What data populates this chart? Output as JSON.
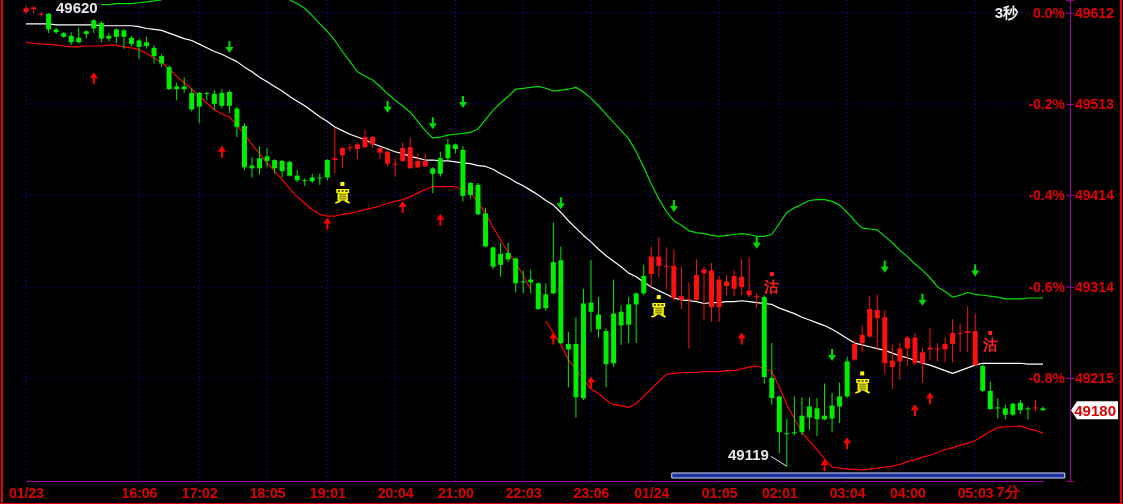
{
  "chart_data": {
    "type": "candlestick",
    "categories": [
      "01/23",
      null,
      null,
      null,
      null,
      null,
      null,
      null,
      null,
      null,
      null,
      null,
      null,
      null,
      null,
      "16:06",
      null,
      null,
      null,
      null,
      null,
      null,
      null,
      "17:02",
      null,
      null,
      null,
      null,
      null,
      null,
      null,
      null,
      "18:05",
      null,
      null,
      null,
      null,
      null,
      null,
      null,
      "19:01",
      null,
      null,
      null,
      null,
      null,
      null,
      null,
      null,
      "20:04",
      null,
      null,
      null,
      null,
      null,
      null,
      null,
      "21:00",
      null,
      null,
      null,
      null,
      null,
      null,
      null,
      null,
      "22:03",
      null,
      null,
      null,
      null,
      null,
      null,
      null,
      null,
      "23:06",
      null,
      null,
      null,
      null,
      null,
      null,
      null,
      "01/24",
      null,
      null,
      null,
      null,
      null,
      null,
      null,
      null,
      "01:05",
      null,
      null,
      null,
      null,
      null,
      null,
      null,
      "02:01",
      null,
      null,
      null,
      null,
      null,
      null,
      null,
      null,
      "03:04",
      null,
      null,
      null,
      null,
      null,
      null,
      null,
      "04:00",
      null,
      null,
      null,
      null,
      null,
      null,
      null,
      null,
      "05:03",
      null,
      null,
      null,
      null,
      null,
      null,
      null,
      null,
      null
    ],
    "ohlc": [
      [
        49613,
        49620,
        49611,
        49617
      ],
      [
        49616,
        49619,
        49612,
        49618
      ],
      [
        49610,
        49613,
        49608,
        49611
      ],
      [
        49611,
        49612,
        49590,
        49594
      ],
      [
        49594,
        49596,
        49589,
        49591
      ],
      [
        49590,
        49591,
        49585,
        49586
      ],
      [
        49587,
        49591,
        49577,
        49580
      ],
      [
        49585,
        49596,
        49579,
        49580
      ],
      [
        49592,
        49593,
        49584,
        49589
      ],
      [
        49604,
        49605,
        49590,
        49595
      ],
      [
        49601,
        49603,
        49580,
        49584
      ],
      [
        49587,
        49590,
        49581,
        49584
      ],
      [
        49594,
        49595,
        49579,
        49586
      ],
      [
        49593,
        49594,
        49573,
        49586
      ],
      [
        49585,
        49587,
        49576,
        49578
      ],
      [
        49582,
        49584,
        49562,
        49575
      ],
      [
        49580,
        49586,
        49573,
        49576
      ],
      [
        49574,
        49577,
        49557,
        49565
      ],
      [
        49565,
        49567,
        49553,
        49557
      ],
      [
        49553,
        49555,
        49528,
        49529
      ],
      [
        49532,
        49536,
        49517,
        49529
      ],
      [
        49532,
        49542,
        49525,
        49529
      ],
      [
        49525,
        49530,
        49505,
        49507
      ],
      [
        49525,
        49526,
        49492,
        49510
      ],
      [
        49525,
        49526,
        49517,
        49524
      ],
      [
        49524,
        49528,
        49506,
        49513
      ],
      [
        49525,
        49529,
        49508,
        49511
      ],
      [
        49526,
        49528,
        49503,
        49511
      ],
      [
        49508,
        49510,
        49477,
        49488
      ],
      [
        49489,
        49492,
        49441,
        49444
      ],
      [
        49446,
        49455,
        49433,
        49443
      ],
      [
        49454,
        49467,
        49436,
        49443
      ],
      [
        49456,
        49465,
        49444,
        49451
      ],
      [
        49452,
        49453,
        49437,
        49443
      ],
      [
        49451,
        49452,
        49433,
        49440
      ],
      [
        49450,
        49451,
        49434,
        49435
      ],
      [
        49435,
        49441,
        49428,
        49430
      ],
      [
        49430,
        49432,
        49424,
        49429
      ],
      [
        49433,
        49437,
        49427,
        49429
      ],
      [
        49433,
        49437,
        49425,
        49432
      ],
      [
        49452,
        49453,
        49430,
        49433
      ],
      [
        49452,
        49487,
        49438,
        49454
      ],
      [
        49457,
        49466,
        49443,
        49465
      ],
      [
        49465,
        49470,
        49461,
        49466
      ],
      [
        49464,
        49471,
        49453,
        49469
      ],
      [
        49466,
        49485,
        49465,
        49477
      ],
      [
        49469,
        49478,
        49465,
        49477
      ],
      [
        49460,
        49466,
        49453,
        49465
      ],
      [
        49448,
        49462,
        49445,
        49461
      ],
      [
        49447,
        49454,
        49434,
        49448
      ],
      [
        49451,
        49471,
        49450,
        49465
      ],
      [
        49443,
        49476,
        49443,
        49466
      ],
      [
        49444,
        49459,
        49443,
        49451
      ],
      [
        49445,
        49459,
        49445,
        49451
      ],
      [
        49443,
        49444,
        49416,
        49437
      ],
      [
        49454,
        49461,
        49434,
        49437
      ],
      [
        49469,
        49475,
        49452,
        49454
      ],
      [
        49469,
        49470,
        49459,
        49464
      ],
      [
        49463,
        49467,
        49407,
        49413
      ],
      [
        49427,
        49428,
        49410,
        49414
      ],
      [
        49425,
        49427,
        49392,
        49393
      ],
      [
        49394,
        49400,
        49357,
        49358
      ],
      [
        49357,
        49358,
        49333,
        49336
      ],
      [
        49350,
        49362,
        49325,
        49338
      ],
      [
        49351,
        49362,
        49341,
        49344
      ],
      [
        49345,
        49346,
        49308,
        49318
      ],
      [
        49320,
        49332,
        49307,
        49319
      ],
      [
        49322,
        49333,
        49307,
        49319
      ],
      [
        49318,
        49319,
        49289,
        49290
      ],
      [
        49306,
        49318,
        49288,
        49291
      ],
      [
        49341,
        49384,
        49306,
        49307
      ],
      [
        49343,
        49358,
        49252,
        49253
      ],
      [
        49252,
        49265,
        49205,
        49246
      ],
      [
        49252,
        49281,
        49172,
        49194
      ],
      [
        49296,
        49312,
        49191,
        49193
      ],
      [
        49297,
        49343,
        49265,
        49287
      ],
      [
        49284,
        49303,
        49259,
        49268
      ],
      [
        49266,
        49269,
        49205,
        49230
      ],
      [
        49285,
        49322,
        49227,
        49231
      ],
      [
        49287,
        49294,
        49251,
        49272
      ],
      [
        49295,
        49303,
        49253,
        49273
      ],
      [
        49307,
        49308,
        49253,
        49295
      ],
      [
        49326,
        49338,
        49305,
        49307
      ],
      [
        49328,
        49358,
        49314,
        49347
      ],
      [
        49337,
        49368,
        49325,
        49347
      ],
      [
        49336,
        49357,
        49311,
        49337
      ],
      [
        49302,
        49355,
        49299,
        49337
      ],
      [
        49300,
        49336,
        49290,
        49304
      ],
      [
        49300,
        49319,
        49247,
        49301
      ],
      [
        49300,
        49344,
        49299,
        49327
      ],
      [
        49329,
        49336,
        49278,
        49333
      ],
      [
        49292,
        49340,
        49276,
        49332
      ],
      [
        49292,
        49326,
        49276,
        49322
      ],
      [
        49315,
        49327,
        49305,
        49320
      ],
      [
        49312,
        49332,
        49304,
        49326
      ],
      [
        49314,
        49344,
        49305,
        49325
      ],
      [
        49305,
        49346,
        49303,
        49310
      ],
      [
        49303,
        49307,
        49291,
        49304
      ],
      [
        49303,
        49305,
        49209,
        49216
      ],
      [
        49215,
        49253,
        49186,
        49193
      ],
      [
        49195,
        49196,
        49133,
        49156
      ],
      [
        49155,
        49171,
        49119,
        49154
      ],
      [
        49156,
        49195,
        49153,
        49155
      ],
      [
        49174,
        49194,
        49153,
        49156
      ],
      [
        49184,
        49194,
        49158,
        49172
      ],
      [
        49182,
        49193,
        49152,
        49170
      ],
      [
        49174,
        49209,
        49169,
        49170
      ],
      [
        49185,
        49199,
        49156,
        49171
      ],
      [
        49195,
        49210,
        49166,
        49184
      ],
      [
        49233,
        49238,
        49193,
        49195
      ],
      [
        49235,
        49256,
        49234,
        49252
      ],
      [
        49253,
        49272,
        49243,
        49262
      ],
      [
        49260,
        49304,
        49259,
        49290
      ],
      [
        49280,
        49306,
        49245,
        49289
      ],
      [
        49231,
        49289,
        49220,
        49281
      ],
      [
        49227,
        49251,
        49203,
        49234
      ],
      [
        49233,
        49253,
        49213,
        49247
      ],
      [
        49247,
        49261,
        49228,
        49259
      ],
      [
        49231,
        49264,
        49229,
        49259
      ],
      [
        49231,
        49248,
        49210,
        49243
      ],
      [
        49246,
        49269,
        49234,
        49248
      ],
      [
        49246,
        49253,
        49233,
        49247
      ],
      [
        49246,
        49259,
        49232,
        49252
      ],
      [
        49252,
        49279,
        49232,
        49264
      ],
      [
        49263,
        49274,
        49243,
        49264
      ],
      [
        49264,
        49293,
        49243,
        49266
      ],
      [
        49229,
        49285,
        49228,
        49266
      ],
      [
        49228,
        49230,
        49200,
        49201
      ],
      [
        49201,
        49211,
        49181,
        49181
      ],
      [
        49183,
        49193,
        49171,
        49182
      ],
      [
        49182,
        49186,
        49170,
        49175
      ],
      [
        49187,
        49188,
        49174,
        49175
      ],
      [
        49188,
        49191,
        49176,
        49180
      ],
      [
        49182,
        49184,
        49170,
        49181
      ],
      [
        49182,
        49191,
        49179,
        49183
      ],
      [
        49182,
        49184,
        49179,
        49180
      ]
    ],
    "series": [
      {
        "type": "line",
        "color": "#00e000",
        "values": [
          null,
          null,
          null,
          null,
          null,
          null,
          null,
          null,
          null,
          null,
          49621,
          49621,
          49622,
          49622,
          49622,
          49623,
          49624,
          49625,
          49626,
          null,
          null,
          null,
          null,
          null,
          null,
          null,
          null,
          null,
          null,
          null,
          null,
          null,
          null,
          null,
          null,
          49626,
          49622,
          49617,
          49609,
          49600,
          49592,
          49582,
          49570,
          49559,
          49548,
          49543,
          49539,
          49532,
          49524,
          49517,
          49511,
          49504,
          49494,
          49484,
          49476,
          49477,
          49479,
          49480,
          49481,
          49482,
          49486,
          49496,
          49506,
          49514,
          49521,
          49529,
          49530,
          49531,
          49532,
          49530,
          49527,
          49528,
          49529,
          49531,
          49526,
          49519,
          49511,
          49502,
          49493,
          49484,
          49475,
          49461,
          49444,
          49426,
          49410,
          49396,
          49386,
          49381,
          49375,
          49373,
          49372,
          49370,
          49369,
          49370,
          49371,
          49372,
          49371,
          49369,
          49369,
          49371,
          49383,
          49395,
          49400,
          49404,
          49408,
          49409,
          49409,
          49407,
          49403,
          49395,
          49386,
          49378,
          49377,
          49376,
          49369,
          49362,
          49354,
          49347,
          49339,
          49332,
          49324,
          49314,
          49309,
          49303,
          49305,
          49308,
          49306,
          49305,
          49304,
          49303,
          49301,
          49301,
          49301,
          49302,
          49302,
          49302
        ]
      },
      {
        "type": "line",
        "color": "#ffffff",
        "values": [
          49600,
          49600,
          49600,
          49600,
          49599,
          49599,
          49599,
          49599,
          49599,
          49599,
          49598,
          49598,
          49598,
          49598,
          49598,
          49597,
          49595,
          49594,
          49593,
          49590,
          49587,
          49584,
          49582,
          49578,
          49574,
          49570,
          49567,
          49563,
          49559,
          49553,
          49548,
          49542,
          49537,
          49532,
          49527,
          49521,
          49516,
          49511,
          49505,
          49499,
          49494,
          49488,
          49484,
          49480,
          49477,
          49474,
          49470,
          49467,
          49464,
          49461,
          49459,
          49456,
          49454,
          49452,
          49452,
          49451,
          49451,
          49450,
          49449,
          49448,
          49446,
          49445,
          49442,
          49437,
          49433,
          49428,
          49424,
          49419,
          49414,
          49408,
          49403,
          49395,
          49386,
          49378,
          49370,
          49363,
          49355,
          49348,
          49342,
          49336,
          49329,
          49325,
          49319,
          49314,
          49310,
          49306,
          49302,
          49300,
          49299,
          49298,
          49296,
          49297,
          49297,
          49298,
          49298,
          49299,
          49298,
          49297,
          49296,
          49295,
          49291,
          49288,
          49285,
          49281,
          49278,
          49275,
          49272,
          49268,
          49263,
          49258,
          49253,
          49251,
          49249,
          49247,
          49245,
          49242,
          49239,
          49237,
          49234,
          49231,
          49229,
          49226,
          49223,
          49220,
          49223,
          49226,
          49229,
          49231,
          49231,
          49231,
          49231,
          49231,
          49231,
          49230,
          49230,
          49230
        ]
      },
      {
        "type": "line",
        "color": "#ff0000",
        "values": [
          49580,
          49579,
          49578,
          49578,
          49577,
          49576,
          49575,
          49575,
          49576,
          49576,
          49576,
          49577,
          49577,
          49575,
          49574,
          49572,
          49568,
          49563,
          49558,
          49551,
          49543,
          49536,
          49529,
          49522,
          49514,
          49507,
          49502,
          49499,
          49490,
          49480,
          49469,
          49459,
          49449,
          49440,
          49431,
          49421,
          49412,
          49405,
          49398,
          49393,
          49391,
          49391,
          49393,
          49394,
          49396,
          49398,
          49400,
          49402,
          49405,
          49407,
          49409,
          49412,
          49416,
          49420,
          49423,
          49423,
          49423,
          49423,
          49420,
          49417,
          49406,
          49394,
          49379,
          49365,
          49352,
          49340,
          49327,
          49311,
          null,
          49277,
          49264,
          49251,
          49235,
          49224,
          49213,
          49203,
          49198,
          49191,
          49186,
          49185,
          49183,
          49187,
          49195,
          49203,
          49211,
          49219,
          49220,
          49221,
          49221,
          49221,
          49222,
          49222,
          49222,
          49223,
          49223,
          49225,
          49227,
          49228,
          49225,
          49222,
          49205,
          49186,
          49171,
          49156,
          49146,
          49137,
          49127,
          49118,
          49117,
          49116,
          49116,
          49115,
          49116,
          49117,
          49118,
          49119,
          49121,
          49124,
          49126,
          49129,
          49131,
          49134,
          49137,
          49139,
          49142,
          49144,
          49147,
          49152,
          49157,
          49161,
          49162,
          49162,
          49163,
          49160,
          49158,
          49155
        ]
      },
      {
        "type": "scatter",
        "color": "#00e000",
        "marker": "triangle",
        "values": [
          null,
          null,
          null,
          null,
          null,
          null,
          null,
          null,
          null,
          null,
          null,
          null,
          null,
          null,
          null,
          null,
          null,
          null,
          null,
          null,
          null,
          null,
          null,
          null,
          null,
          null,
          null,
          49575,
          null,
          null,
          null,
          null,
          null,
          null,
          null,
          null,
          null,
          null,
          null,
          null,
          null,
          null,
          null,
          null,
          null,
          null,
          null,
          null,
          49510,
          null,
          null,
          null,
          null,
          null,
          49492,
          null,
          null,
          null,
          49515,
          null,
          null,
          null,
          null,
          null,
          null,
          null,
          null,
          null,
          null,
          null,
          null,
          49405,
          null,
          null,
          null,
          null,
          null,
          null,
          null,
          null,
          null,
          null,
          null,
          null,
          null,
          null,
          49402,
          null,
          null,
          null,
          null,
          null,
          null,
          null,
          null,
          null,
          null,
          49362,
          null,
          null,
          null,
          null,
          null,
          null,
          null,
          null,
          null,
          49240,
          null,
          null,
          null,
          null,
          null,
          null,
          49336,
          null,
          null,
          null,
          null,
          49300,
          null,
          null,
          null,
          null,
          null,
          null,
          49332,
          null,
          null,
          null,
          null,
          null,
          null,
          null,
          null,
          null
        ]
      },
      {
        "type": "scatter",
        "color": "#ff0000",
        "marker": "triangle",
        "values": [
          null,
          null,
          null,
          null,
          null,
          null,
          null,
          null,
          null,
          49541,
          null,
          null,
          null,
          null,
          null,
          null,
          null,
          null,
          null,
          null,
          null,
          null,
          null,
          null,
          null,
          null,
          49461,
          null,
          null,
          null,
          null,
          null,
          null,
          null,
          null,
          null,
          null,
          null,
          null,
          null,
          49383,
          null,
          null,
          null,
          null,
          null,
          null,
          null,
          null,
          null,
          49401,
          null,
          null,
          null,
          null,
          49387,
          null,
          null,
          null,
          null,
          null,
          null,
          null,
          null,
          null,
          null,
          null,
          null,
          null,
          null,
          49258,
          null,
          null,
          null,
          null,
          49210,
          null,
          null,
          null,
          null,
          null,
          null,
          null,
          null,
          null,
          null,
          null,
          null,
          null,
          null,
          null,
          null,
          null,
          null,
          null,
          49258,
          null,
          null,
          null,
          null,
          null,
          null,
          null,
          null,
          null,
          null,
          49120,
          null,
          null,
          49144,
          null,
          null,
          null,
          null,
          null,
          null,
          null,
          null,
          49180,
          null,
          49193,
          null,
          null,
          null,
          null,
          null,
          null,
          null,
          null,
          null,
          null,
          null,
          null,
          null,
          null,
          null
        ]
      },
      {
        "type": "scatter",
        "color": "#ffff00",
        "marker": "square",
        "values": [
          null,
          null,
          null,
          null,
          null,
          null,
          null,
          null,
          null,
          null,
          null,
          null,
          null,
          null,
          null,
          null,
          null,
          null,
          null,
          null,
          null,
          null,
          null,
          null,
          null,
          null,
          null,
          null,
          null,
          null,
          null,
          null,
          null,
          null,
          null,
          null,
          null,
          null,
          null,
          null,
          null,
          null,
          49426,
          null,
          null,
          null,
          null,
          null,
          null,
          null,
          null,
          null,
          null,
          null,
          null,
          null,
          null,
          null,
          null,
          null,
          null,
          null,
          null,
          null,
          null,
          null,
          null,
          null,
          null,
          null,
          null,
          null,
          null,
          null,
          null,
          null,
          null,
          null,
          null,
          null,
          null,
          null,
          null,
          null,
          49303,
          null,
          null,
          null,
          null,
          null,
          null,
          null,
          null,
          null,
          null,
          null,
          null,
          null,
          null,
          null,
          null,
          null,
          null,
          null,
          null,
          null,
          null,
          null,
          null,
          null,
          null,
          49220,
          null,
          null,
          null,
          null,
          null,
          null,
          null,
          null,
          null,
          null,
          null,
          null,
          null,
          null,
          null,
          null,
          null,
          null,
          null,
          null,
          null,
          null,
          null,
          null
        ],
        "value_labels": [
          null,
          null,
          null,
          null,
          null,
          null,
          null,
          null,
          null,
          null,
          null,
          null,
          null,
          null,
          null,
          null,
          null,
          null,
          null,
          null,
          null,
          null,
          null,
          null,
          null,
          null,
          null,
          null,
          null,
          null,
          null,
          null,
          null,
          null,
          null,
          null,
          null,
          null,
          null,
          null,
          null,
          null,
          "買",
          null,
          null,
          null,
          null,
          null,
          null,
          null,
          null,
          null,
          null,
          null,
          null,
          null,
          null,
          null,
          null,
          null,
          null,
          null,
          null,
          null,
          null,
          null,
          null,
          null,
          null,
          null,
          null,
          null,
          null,
          null,
          null,
          null,
          null,
          null,
          null,
          null,
          null,
          null,
          null,
          null,
          "買",
          null,
          null,
          null,
          null,
          null,
          null,
          null,
          null,
          null,
          null,
          null,
          null,
          null,
          null,
          null,
          null,
          null,
          null,
          null,
          null,
          null,
          null,
          null,
          null,
          null,
          null,
          "買",
          null,
          null,
          null,
          null,
          null,
          null,
          null,
          null,
          null,
          null,
          null,
          null,
          null,
          null,
          null,
          null,
          null,
          null,
          null,
          null,
          null,
          null,
          null,
          null
        ]
      },
      {
        "type": "scatter",
        "color": "#ff2020",
        "marker": "square",
        "values": [
          null,
          null,
          null,
          null,
          null,
          null,
          null,
          null,
          null,
          null,
          null,
          null,
          null,
          null,
          null,
          null,
          null,
          null,
          null,
          null,
          null,
          null,
          null,
          null,
          null,
          null,
          null,
          null,
          null,
          null,
          null,
          null,
          null,
          null,
          null,
          null,
          null,
          null,
          null,
          null,
          null,
          null,
          null,
          null,
          null,
          null,
          null,
          null,
          null,
          null,
          null,
          null,
          null,
          null,
          null,
          null,
          null,
          null,
          null,
          null,
          null,
          null,
          null,
          null,
          null,
          null,
          null,
          null,
          null,
          null,
          null,
          null,
          null,
          null,
          null,
          null,
          null,
          null,
          null,
          null,
          null,
          null,
          null,
          null,
          null,
          null,
          null,
          null,
          null,
          null,
          null,
          null,
          null,
          null,
          null,
          null,
          null,
          null,
          null,
          49328,
          null,
          null,
          null,
          null,
          null,
          null,
          null,
          null,
          null,
          null,
          null,
          null,
          null,
          null,
          null,
          null,
          null,
          null,
          null,
          null,
          null,
          null,
          null,
          null,
          null,
          null,
          null,
          null,
          49264,
          null,
          null,
          null,
          null,
          null,
          null,
          null
        ],
        "value_labels": [
          null,
          null,
          null,
          null,
          null,
          null,
          null,
          null,
          null,
          null,
          null,
          null,
          null,
          null,
          null,
          null,
          null,
          null,
          null,
          null,
          null,
          null,
          null,
          null,
          null,
          null,
          null,
          null,
          null,
          null,
          null,
          null,
          null,
          null,
          null,
          null,
          null,
          null,
          null,
          null,
          null,
          null,
          null,
          null,
          null,
          null,
          null,
          null,
          null,
          null,
          null,
          null,
          null,
          null,
          null,
          null,
          null,
          null,
          null,
          null,
          null,
          null,
          null,
          null,
          null,
          null,
          null,
          null,
          null,
          null,
          null,
          null,
          null,
          null,
          null,
          null,
          null,
          null,
          null,
          null,
          null,
          null,
          null,
          null,
          null,
          null,
          null,
          null,
          null,
          null,
          null,
          null,
          null,
          null,
          null,
          null,
          null,
          null,
          null,
          "沽",
          null,
          null,
          null,
          null,
          null,
          null,
          null,
          null,
          null,
          null,
          null,
          null,
          null,
          null,
          null,
          null,
          null,
          null,
          null,
          null,
          null,
          null,
          null,
          null,
          null,
          null,
          null,
          null,
          "沽",
          null,
          null,
          null,
          null,
          null,
          null,
          null
        ]
      }
    ],
    "ylim": [
      49103,
      49626
    ],
    "yticks": [
      49612,
      49513,
      49414,
      49314,
      49215
    ],
    "y2lim": [
      -1.026,
      0.028
    ],
    "y2ticks": [
      {
        "value": 0,
        "label": "0.0%"
      },
      {
        "value": -0.2,
        "label": "-0.2%"
      },
      {
        "value": -0.4,
        "label": "-0.4%"
      },
      {
        "value": -0.6,
        "label": "-0.6%"
      },
      {
        "value": -0.8,
        "label": "-0.8%"
      }
    ],
    "grid": true,
    "annotations": [
      "3秒",
      "7分",
      "49620",
      "49119",
      "49180"
    ]
  }
}
